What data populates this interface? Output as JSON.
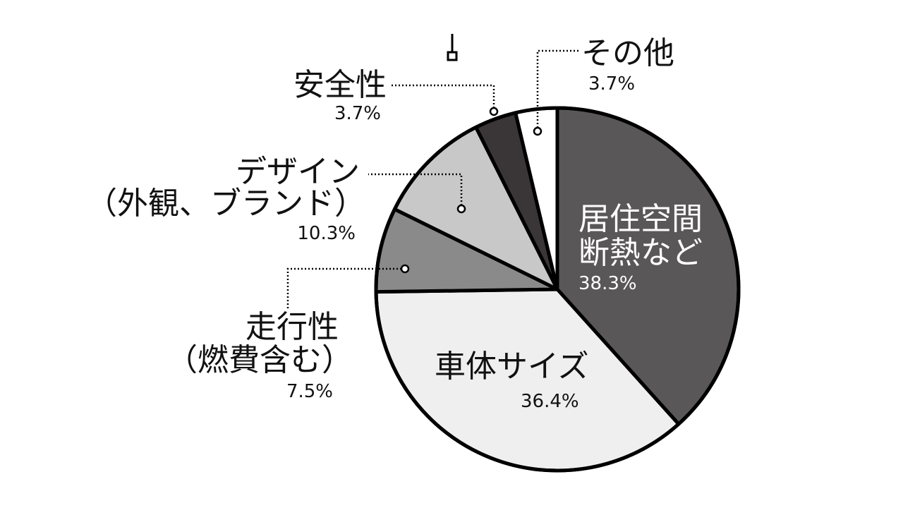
{
  "chart_data": {
    "type": "pie",
    "title": "",
    "slices": [
      {
        "label_lines": [
          "居住空間",
          "断熱など"
        ],
        "value": 38.3,
        "value_label": "38.3%",
        "color": "#5a5758"
      },
      {
        "label_lines": [
          "車体サイズ"
        ],
        "value": 36.4,
        "value_label": "36.4%",
        "color": "#efefef"
      },
      {
        "label_lines": [
          "走行性",
          "（燃費含む）"
        ],
        "value": 7.5,
        "value_label": "7.5%",
        "color": "#8a8a8a"
      },
      {
        "label_lines": [
          "デザイン",
          "（外観、ブランド）"
        ],
        "value": 10.3,
        "value_label": "10.3%",
        "color": "#c8c8c8"
      },
      {
        "label_lines": [
          "安全性"
        ],
        "value": 3.7,
        "value_label": "3.7%",
        "color": "#3a3637"
      },
      {
        "label_lines": [
          "その他"
        ],
        "value": 3.7,
        "value_label": "3.7%",
        "color": "#ffffff"
      }
    ],
    "start": "12 o'clock",
    "direction": "clockwise",
    "legend": "none"
  }
}
